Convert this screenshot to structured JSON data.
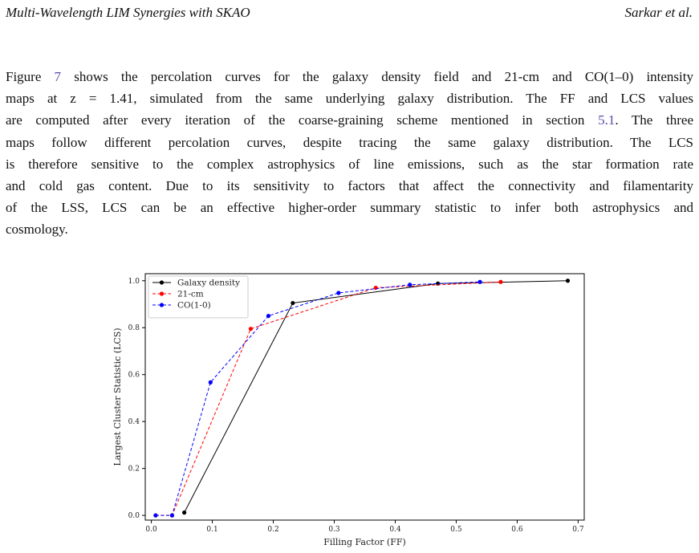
{
  "header": {
    "left": "Multi-Wavelength LIM Synergies with SKAO",
    "right": "Sarkar et al."
  },
  "paragraph": {
    "l1": {
      "a": "Figure ",
      "ref": "7",
      "b": " shows the percolation curves for the galaxy density field and 21-cm and CO(1–0) intensity"
    },
    "l2": "maps at z = 1.41, simulated from the same underlying galaxy distribution. The FF and LCS values",
    "l3": {
      "a": "are computed after every iteration of the coarse-graining scheme mentioned in section ",
      "ref": "5.1",
      "b": ". The three"
    },
    "l4": "maps follow different percolation curves, despite tracing the same galaxy distribution. The LCS",
    "l5": "is therefore sensitive to the complex astrophysics of line emissions, such as the star formation rate",
    "l6": "and cold gas content. Due to its sensitivity to factors that affect the connectivity and filamentarity",
    "l7": "of the LSS, LCS can be an effective higher-order summary statistic to infer both astrophysics and",
    "l8": "cosmology."
  },
  "chart_data": {
    "type": "line",
    "xlabel": "Filling Factor (FF)",
    "ylabel": "Largest Cluster Statistic (LCS)",
    "xlim": [
      -0.01,
      0.71
    ],
    "ylim": [
      -0.02,
      1.03
    ],
    "xticks": [
      "0.0",
      "0.1",
      "0.2",
      "0.3",
      "0.4",
      "0.5",
      "0.6",
      "0.7"
    ],
    "yticks": [
      "0.0",
      "0.2",
      "0.4",
      "0.6",
      "0.8",
      "1.0"
    ],
    "legend_position": "top-left",
    "grid": false,
    "series": [
      {
        "name": "Galaxy density",
        "color": "#000000",
        "style": "solid",
        "x": [
          0.054,
          0.232,
          0.47,
          0.683
        ],
        "y": [
          0.012,
          0.905,
          0.988,
          1.0
        ]
      },
      {
        "name": "21-cm",
        "color": "#ff0000",
        "style": "dashed",
        "x": [
          0.007,
          0.034,
          0.163,
          0.368,
          0.573
        ],
        "y": [
          0.0,
          0.0,
          0.795,
          0.97,
          0.995
        ]
      },
      {
        "name": "CO(1-0)",
        "color": "#0000ff",
        "style": "dashed",
        "x": [
          0.007,
          0.034,
          0.097,
          0.192,
          0.307,
          0.424,
          0.539
        ],
        "y": [
          0.0,
          0.0,
          0.567,
          0.85,
          0.948,
          0.983,
          0.995
        ]
      }
    ]
  }
}
